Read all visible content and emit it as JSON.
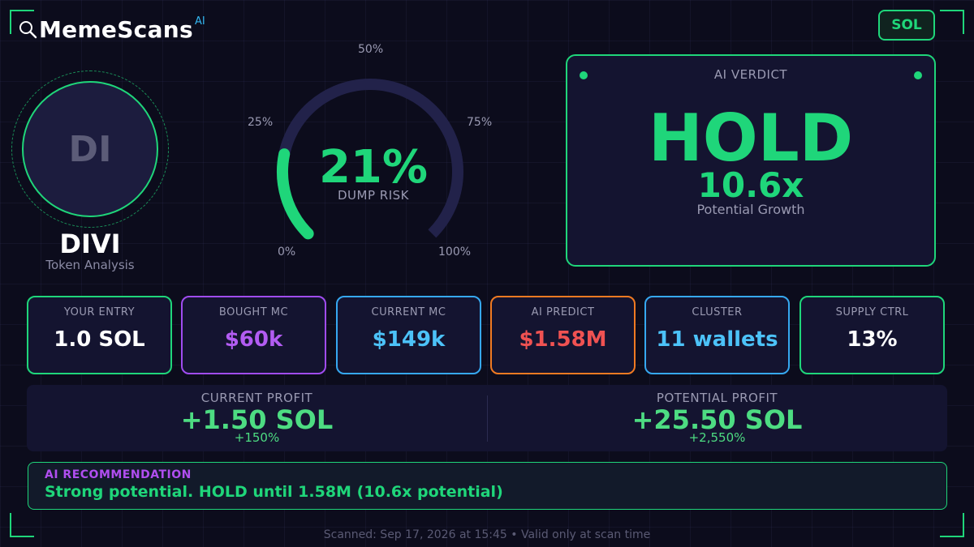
{
  "brand": {
    "name": "MemeScans",
    "superscript": "AI",
    "icon": "search-icon"
  },
  "chain_badge": {
    "label": "SOL",
    "color": "#1fd67a"
  },
  "token": {
    "initials": "DI",
    "name": "DIVI",
    "subtitle": "Token Analysis"
  },
  "gauge": {
    "value_text": "21%",
    "value": 21,
    "label": "DUMP RISK",
    "ticks": {
      "t0": "0%",
      "t25": "25%",
      "t50": "50%",
      "t75": "75%",
      "t100": "100%"
    },
    "fill_color": "#1fd67a",
    "track_color": "#22224a"
  },
  "verdict": {
    "title": "AI VERDICT",
    "action": "HOLD",
    "multiplier": "10.6x",
    "subtitle": "Potential Growth"
  },
  "stats": [
    {
      "label": "YOUR ENTRY",
      "value": "1.0 SOL",
      "border": "#1fd67a",
      "color": "#ffffff"
    },
    {
      "label": "BOUGHT MC",
      "value": "$60k",
      "border": "#a04cf0",
      "color": "#b25cf2"
    },
    {
      "label": "CURRENT MC",
      "value": "$149k",
      "border": "#36a8f0",
      "color": "#4cc2f8"
    },
    {
      "label": "AI PREDICT",
      "value": "$1.58M",
      "border": "#f07a22",
      "color": "#f05252"
    },
    {
      "label": "CLUSTER",
      "value": "11 wallets",
      "border": "#36a8f0",
      "color": "#4cc2f8"
    },
    {
      "label": "SUPPLY CTRL",
      "value": "13%",
      "border": "#1fd67a",
      "color": "#ffffff"
    }
  ],
  "profit": {
    "current": {
      "label": "CURRENT PROFIT",
      "value": "+1.50 SOL",
      "pct": "+150%"
    },
    "potential": {
      "label": "POTENTIAL PROFIT",
      "value": "+25.50 SOL",
      "pct": "+2,550%"
    }
  },
  "recommendation": {
    "title": "AI RECOMMENDATION",
    "text": "Strong potential. HOLD until 1.58M (10.6x potential)"
  },
  "footer": "Scanned: Sep 17, 2026 at 15:45  •  Valid only at scan time"
}
